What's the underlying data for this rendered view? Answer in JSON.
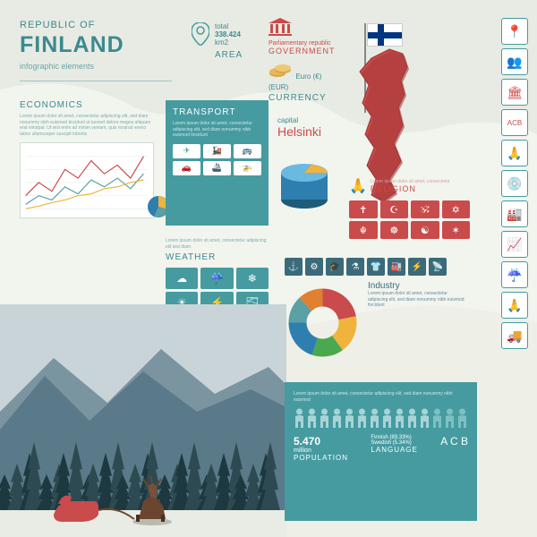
{
  "title": {
    "over": "REPUBLIC OF",
    "main": "FINLAND",
    "sub": "infographic elements"
  },
  "area": {
    "label_total": "total",
    "value": "338.424",
    "unit": "km2",
    "section": "AREA"
  },
  "government": {
    "type": "Parliamentary republic",
    "label": "GOVERNMENT",
    "icon_color": "#c94b4b"
  },
  "currency": {
    "name": "Euro (€)",
    "code": "(EUR)",
    "label": "CURRENCY",
    "coin_color": "#d8a54a"
  },
  "capital": {
    "label": "capital",
    "name": "Helsinki"
  },
  "flag": {
    "bg": "#ffffff",
    "cross": "#003580"
  },
  "finland_map_color": "#c94b4b",
  "economics": {
    "label": "ECONOMICS",
    "lorem": "Lorem ipsum dolor sit amet, consectetur adipiscing elit, sed diam nonummy nibh euismod tincidunt ut laoreet dolore magna aliquam erat volutpat. Ut wisi enim ad minim veniam, quis nostrud exerci tation ullamcorper suscipit lobortis",
    "pie_colors": [
      "#2e7fb0",
      "#f0b43c",
      "#5aa0a4"
    ],
    "lines": [
      {
        "color": "#c94b4b",
        "pts": [
          5,
          60,
          20,
          45,
          35,
          55,
          50,
          30,
          65,
          40,
          80,
          20,
          95,
          35,
          110,
          25,
          125,
          40,
          140,
          15
        ]
      },
      {
        "color": "#5aa0a4",
        "pts": [
          5,
          70,
          20,
          60,
          35,
          65,
          50,
          50,
          65,
          58,
          80,
          42,
          95,
          50,
          110,
          40,
          125,
          52,
          140,
          35
        ]
      },
      {
        "color": "#f0b43c",
        "pts": [
          5,
          75,
          20,
          72,
          35,
          68,
          50,
          65,
          65,
          60,
          80,
          58,
          95,
          52,
          110,
          50,
          125,
          45,
          140,
          42
        ]
      }
    ]
  },
  "transport": {
    "label": "TRANSPORT",
    "lorem": "Lorem ipsum dolor sit amet, consectetur adipiscing elit, sed diam nonummy nibh euismod tincidunt",
    "icons": [
      "✈",
      "🚂",
      "🚌",
      "🚗",
      "🚢",
      "🚁"
    ],
    "cylinder_colors": {
      "top": "#6bb8e0",
      "side": "#2e7fb0",
      "cut": "#f0b43c"
    }
  },
  "weather": {
    "label": "WEATHER",
    "lorem": "Lorem ipsum dolor sit amet, consectetur adipiscing elit sed diam",
    "icons": [
      "☁",
      "☔",
      "❄",
      "☀",
      "⚡",
      "🌫",
      "☁",
      "🌪",
      "🌡"
    ]
  },
  "religion": {
    "label": "RELIGION",
    "lorem": "Lorem ipsum dolor sit amet, consectetur",
    "icons": [
      "✝",
      "☪",
      "🕉",
      "✡",
      "☬",
      "☸",
      "☯",
      "✶"
    ]
  },
  "industry": {
    "label": "Industry",
    "lorem": "Lorem ipsum dolor sit amet, consectetur adipiscing elit, sed diam nonummy nibh euismod tincidunt",
    "icons": [
      "⚓",
      "⚙",
      "🎓",
      "⚗",
      "👕",
      "🏭",
      "⚡",
      "📡"
    ],
    "donut_colors": [
      "#c94b4b",
      "#f0b43c",
      "#4aa84e",
      "#2e7fb0",
      "#5aa0a4",
      "#e08030"
    ],
    "donut_values": [
      22,
      18,
      15,
      20,
      13,
      12
    ]
  },
  "forest": {
    "sky": "#c9d4d8",
    "mountain": "#5a7a8a",
    "trees": "#2d4a52",
    "tree_dark": "#1e3840",
    "reindeer": "#6b4530",
    "sleigh": "#c94b4b"
  },
  "population": {
    "lorem": "Lorem ipsum dolor sit amet, consectetur adipiscing elit, sed diam nonummy nibh euismod",
    "count": 14,
    "person_fill": "#a8d4d6",
    "person_alt": "#7fc0c3",
    "value": "5.470",
    "unit": "million",
    "label": "POPULATION",
    "languages": [
      {
        "name": "Finnish",
        "pct": "(89.33%)"
      },
      {
        "name": "Swedish",
        "pct": "(5.34%)"
      }
    ],
    "lang_label": "LANGUAGE",
    "abc": "A C B"
  },
  "side_icons": [
    "📍",
    "👥",
    "🏛",
    "ACB",
    "🙏",
    "💿",
    "🏭",
    "📈",
    "☔",
    "🙏",
    "🚚"
  ],
  "colors": {
    "teal": "#459ba0",
    "teal_dark": "#3b8a8f",
    "red": "#c94b4b",
    "bg": "#e8ebe3"
  }
}
